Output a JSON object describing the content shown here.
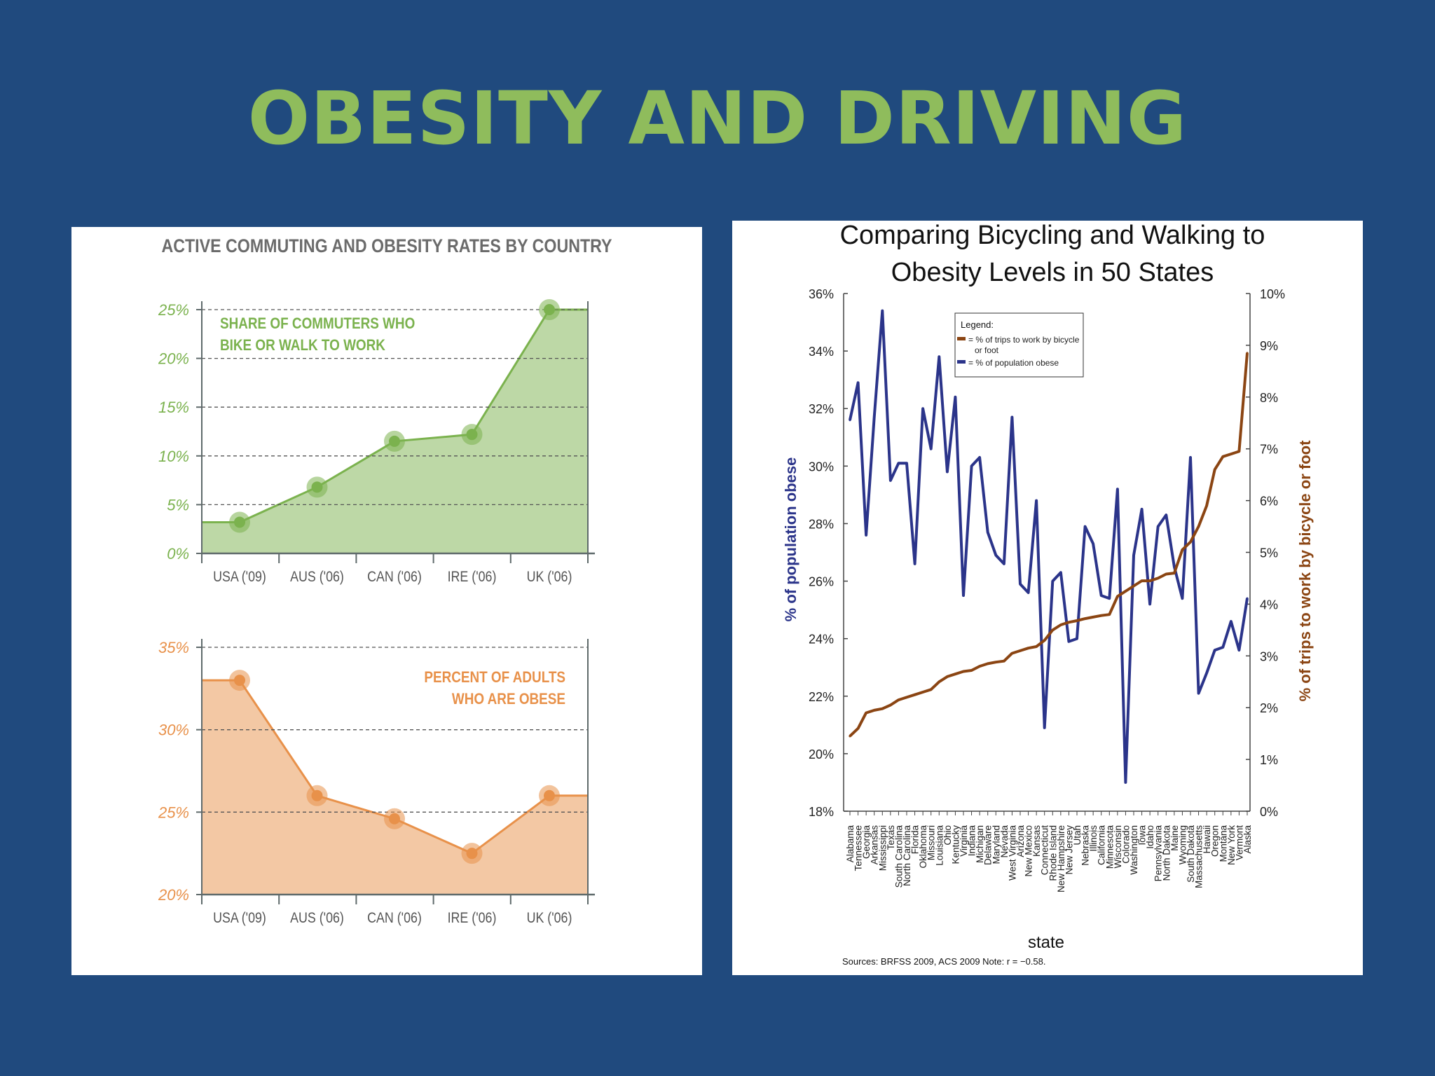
{
  "slide": {
    "title": "OBESITY AND DRIVING"
  },
  "chart_data": [
    {
      "type": "area",
      "title": "ACTIVE COMMUTING AND OBESITY RATES BY COUNTRY",
      "annotation": [
        "SHARE OF COMMUTERS WHO",
        "BIKE OR WALK TO WORK"
      ],
      "categories": [
        "USA ('09)",
        "AUS ('06)",
        "CAN ('06)",
        "IRE ('06)",
        "UK ('06)"
      ],
      "values": [
        3.2,
        6.8,
        11.5,
        12.2,
        25
      ],
      "ylim": [
        0,
        25
      ],
      "yticks": [
        "0%",
        "5%",
        "10%",
        "15%",
        "20%",
        "25%"
      ],
      "color": "#7bb24e",
      "grid": true
    },
    {
      "type": "area",
      "annotation": [
        "PERCENT OF ADULTS",
        "WHO ARE OBESE"
      ],
      "categories": [
        "USA ('09)",
        "AUS ('06)",
        "CAN ('06)",
        "IRE ('06)",
        "UK ('06)"
      ],
      "values": [
        33,
        26,
        24.6,
        22.5,
        26
      ],
      "ylim": [
        20,
        35
      ],
      "yticks": [
        "20%",
        "25%",
        "30%",
        "35%"
      ],
      "color": "#e8914a",
      "grid": true
    },
    {
      "type": "line",
      "title": [
        "Comparing Bicycling and Walking to",
        "Obesity Levels in 50 States"
      ],
      "xlabel": "state",
      "ylabel": "% of population obese",
      "y2label": "% of trips to work by bicycle or foot",
      "ylim": [
        18,
        36
      ],
      "y2lim": [
        0,
        10
      ],
      "yticks": [
        "18%",
        "20%",
        "22%",
        "24%",
        "26%",
        "28%",
        "30%",
        "32%",
        "34%",
        "36%"
      ],
      "y2ticks": [
        "0%",
        "1%",
        "2%",
        "3%",
        "4%",
        "5%",
        "6%",
        "7%",
        "8%",
        "9%",
        "10%"
      ],
      "legend": {
        "title": "Legend:",
        "items": [
          {
            "label": [
              "= % of trips to work by bicycle",
              "or foot"
            ],
            "color": "#8b4513"
          },
          {
            "label": [
              "= % of population obese"
            ],
            "color": "#2b348a"
          }
        ]
      },
      "source_note": "Sources: BRFSS 2009, ACS 2009 Note: r = −0.58.",
      "states": [
        "Alabama",
        "Tennessee",
        "Georgia",
        "Arkansas",
        "Mississippi",
        "Texas",
        "South Carolina",
        "North Carolina",
        "Florida",
        "Oklahoma",
        "Missouri",
        "Louisiana",
        "Ohio",
        "Kentucky",
        "Virginia",
        "Indiana",
        "Michigan",
        "Delaware",
        "Maryland",
        "Nevada",
        "West Virginia",
        "Arizona",
        "New Mexico",
        "Kansas",
        "Connecticut",
        "Rhode Island",
        "New Hampshire",
        "New Jersey",
        "Utah",
        "Nebraska",
        "Illinois",
        "California",
        "Minnesota",
        "Wisconsin",
        "Colorado",
        "Washington",
        "Iowa",
        "Idaho",
        "Pennsylvania",
        "North Dakota",
        "Maine",
        "Wyoming",
        "South Dakota",
        "Massachusetts",
        "Hawaii",
        "Oregon",
        "Montana",
        "New York",
        "Vermont",
        "Alaska"
      ],
      "series": [
        {
          "name": "% of population obese",
          "axis": "left",
          "color": "#2b348a",
          "values": [
            31.6,
            32.9,
            27.6,
            31.7,
            35.4,
            29.5,
            30.1,
            30.1,
            26.6,
            32.0,
            30.6,
            33.8,
            29.8,
            32.4,
            25.5,
            30.0,
            30.3,
            27.7,
            26.9,
            26.6,
            31.7,
            25.9,
            25.6,
            28.8,
            20.9,
            26.0,
            26.3,
            23.9,
            24.0,
            27.9,
            27.3,
            25.5,
            25.4,
            29.2,
            19.0,
            26.9,
            28.5,
            25.2,
            27.9,
            28.3,
            26.5,
            25.4,
            30.3,
            22.1,
            22.8,
            23.6,
            23.7,
            24.6,
            23.6,
            25.4
          ]
        },
        {
          "name": "% of trips to work by bicycle or foot",
          "axis": "right",
          "color": "#8b4513",
          "values": [
            1.45,
            1.6,
            1.9,
            1.95,
            1.98,
            2.05,
            2.15,
            2.2,
            2.25,
            2.3,
            2.35,
            2.5,
            2.6,
            2.65,
            2.7,
            2.72,
            2.8,
            2.85,
            2.88,
            2.9,
            3.05,
            3.1,
            3.15,
            3.18,
            3.3,
            3.5,
            3.6,
            3.65,
            3.68,
            3.72,
            3.75,
            3.78,
            3.8,
            4.15,
            4.25,
            4.35,
            4.45,
            4.45,
            4.5,
            4.58,
            4.6,
            5.05,
            5.2,
            5.5,
            5.9,
            6.6,
            6.85,
            6.9,
            6.95,
            8.85
          ]
        }
      ]
    }
  ]
}
